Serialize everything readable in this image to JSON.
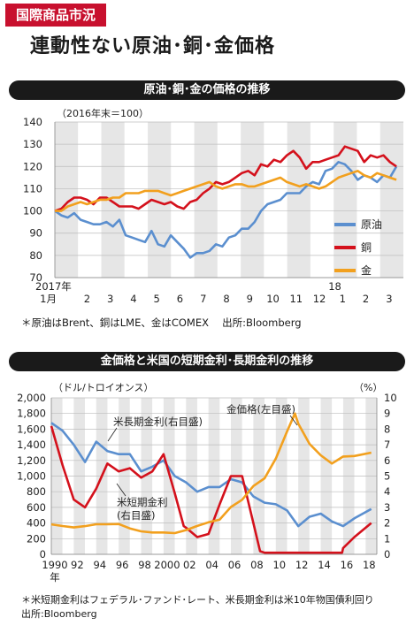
{
  "header": {
    "tag": "国際商品市況",
    "title": "連動性ない原油･銅･金価格"
  },
  "chart1": {
    "heading": "原油･銅･金の価格の推移",
    "unit_note": "（2016年末＝100）",
    "note": "＊原油はBrent、銅はLME、金はCOMEX　 出所:Bloomberg"
  },
  "chart2": {
    "heading": "金価格と米国の短期金利･長期金利の推移",
    "left_unit": "（ドル/トロイオンス）",
    "right_unit": "（%）",
    "note1": "＊米短期金利はフェデラル･ファンド･レート、米長期金利は米10年物国債利回り",
    "note2": "出所:Bloomberg",
    "annot_long": "米長期金利(右目盛)",
    "annot_short1": "米短期金利",
    "annot_short2": "(右目盛)",
    "annot_gold": "金価格(左目盛)"
  },
  "chart_data": [
    {
      "type": "line",
      "ylim": [
        70,
        140
      ],
      "yticks": [
        "140",
        "130",
        "120",
        "110",
        "100",
        "90",
        "80",
        "70"
      ],
      "x_ticks": [
        "1月",
        "2",
        "3",
        "4",
        "5",
        "6",
        "7",
        "8",
        "9",
        "10",
        "11",
        "12",
        "1",
        "2",
        "3"
      ],
      "x_year_labels": [
        "2017年",
        "18"
      ],
      "colors": {
        "crude": "#5b8fcf",
        "copper": "#d4111c",
        "gold": "#f2a01e"
      },
      "series": [
        {
          "name": "原油",
          "key": "crude",
          "values": [
            100,
            98,
            97,
            99,
            96,
            95,
            94,
            94,
            95,
            93,
            96,
            89,
            88,
            87,
            86,
            91,
            85,
            84,
            89,
            86,
            83,
            79,
            81,
            81,
            82,
            85,
            84,
            88,
            89,
            92,
            92,
            95,
            100,
            103,
            104,
            105,
            108,
            108,
            108,
            111,
            113,
            112,
            118,
            119,
            122,
            121,
            118,
            114,
            116,
            115,
            113,
            116,
            115,
            120
          ]
        },
        {
          "name": "銅",
          "key": "copper",
          "values": [
            100,
            101,
            104,
            106,
            106,
            105,
            103,
            106,
            106,
            104,
            102,
            102,
            102,
            101,
            103,
            105,
            104,
            103,
            104,
            102,
            101,
            104,
            105,
            108,
            110,
            113,
            112,
            113,
            115,
            117,
            118,
            116,
            121,
            120,
            123,
            122,
            125,
            127,
            124,
            119,
            122,
            122,
            123,
            124,
            125,
            129,
            128,
            127,
            122,
            125,
            124,
            125,
            122,
            120
          ]
        },
        {
          "name": "金",
          "key": "gold",
          "values": [
            100,
            100,
            102,
            103,
            104,
            103,
            104,
            105,
            105,
            106,
            106,
            108,
            108,
            108,
            109,
            109,
            109,
            108,
            107,
            108,
            109,
            110,
            111,
            112,
            113,
            111,
            110,
            111,
            112,
            112,
            111,
            111,
            112,
            113,
            114,
            115,
            113,
            112,
            111,
            112,
            111,
            110,
            111,
            113,
            115,
            116,
            117,
            118,
            116,
            115,
            117,
            116,
            115,
            114
          ]
        }
      ]
    },
    {
      "type": "line",
      "x_ticks": [
        "1990",
        "92",
        "94",
        "96",
        "98",
        "2000",
        "02",
        "04",
        "06",
        "08",
        "10",
        "12",
        "14",
        "16",
        "18"
      ],
      "x_year_suffix": "年",
      "y_left_ticks": [
        "2,000",
        "1,800",
        "1,600",
        "1,400",
        "1,200",
        "1,000",
        "800",
        "600",
        "400",
        "200",
        "0"
      ],
      "y_right_ticks": [
        "10",
        "9",
        "8",
        "7",
        "6",
        "5",
        "4",
        "3",
        "2",
        "1",
        "0"
      ],
      "ylim_left": [
        0,
        2000
      ],
      "ylim_right": [
        0,
        10
      ],
      "colors": {
        "long": "#5b8fcf",
        "short": "#d4111c",
        "gold": "#f2a01e"
      },
      "series": [
        {
          "name": "米長期金利(右目盛)",
          "key": "long",
          "axis": "right",
          "x": [
            1990,
            1991,
            1992,
            1993,
            1994,
            1995,
            1996,
            1997,
            1998,
            1999,
            2000,
            2001,
            2002,
            2003,
            2004,
            2005,
            2006,
            2007,
            2008,
            2009,
            2010,
            2011,
            2012,
            2013,
            2014,
            2015,
            2016,
            2017,
            2018.5
          ],
          "y": [
            8.4,
            7.9,
            7.0,
            5.9,
            7.2,
            6.6,
            6.4,
            6.4,
            5.3,
            5.6,
            6.0,
            5.0,
            4.6,
            4.0,
            4.3,
            4.3,
            4.8,
            4.6,
            3.7,
            3.3,
            3.2,
            2.8,
            1.8,
            2.4,
            2.6,
            2.1,
            1.8,
            2.3,
            2.9
          ]
        },
        {
          "name": "米短期金利(右目盛)",
          "key": "short",
          "axis": "right",
          "x": [
            1990,
            1991,
            1992,
            1993,
            1994,
            1995,
            1996,
            1997,
            1998,
            1999,
            2000,
            2001,
            2001.8,
            2002,
            2003,
            2004,
            2005,
            2006,
            2007,
            2008,
            2008.6,
            2009,
            2010,
            2015.9,
            2016,
            2017,
            2018.5
          ],
          "y": [
            8.2,
            5.7,
            3.5,
            3.0,
            4.2,
            5.8,
            5.3,
            5.5,
            4.9,
            5.3,
            6.4,
            3.9,
            1.8,
            1.7,
            1.1,
            1.3,
            3.2,
            5.0,
            5.0,
            2.0,
            0.2,
            0.1,
            0.1,
            0.1,
            0.4,
            1.1,
            2.0
          ]
        },
        {
          "name": "金価格(左目盛)",
          "key": "gold",
          "axis": "left",
          "x": [
            1990,
            1991,
            1992,
            1993,
            1994,
            1995,
            1996,
            1997,
            1998,
            1999,
            2000,
            2001,
            2002,
            2003,
            2004,
            2005,
            2006,
            2007,
            2008,
            2009,
            2010,
            2011,
            2011.7,
            2012,
            2013,
            2014,
            2015,
            2016,
            2017,
            2018.5
          ],
          "y": [
            383,
            362,
            344,
            360,
            384,
            384,
            388,
            331,
            294,
            279,
            279,
            271,
            310,
            363,
            409,
            444,
            604,
            697,
            872,
            972,
            1224,
            1571,
            1800,
            1669,
            1411,
            1266,
            1160,
            1250,
            1257,
            1300
          ]
        }
      ]
    }
  ]
}
